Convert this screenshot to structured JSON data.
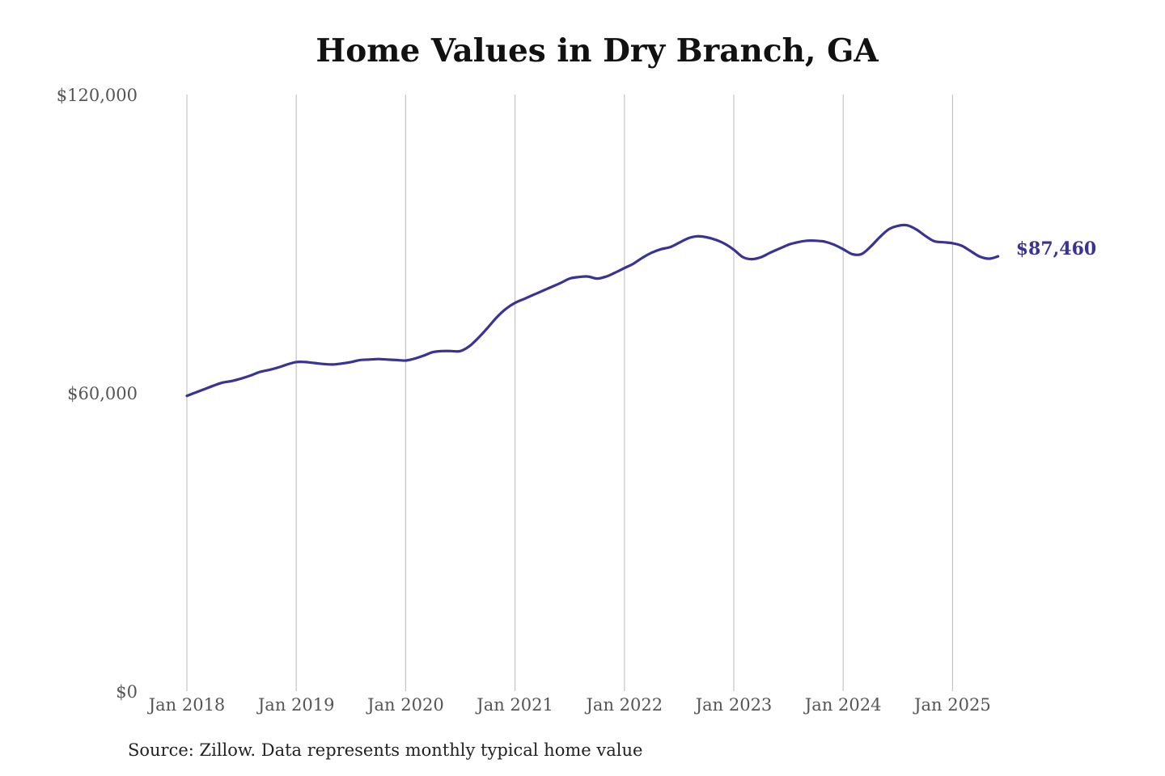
{
  "chart_data": {
    "type": "line",
    "title": "Home Values in Dry Branch, GA",
    "source": "Source: Zillow. Data represents monthly typical home value",
    "ylim": [
      0,
      120000
    ],
    "y_ticks": [
      {
        "value": 0,
        "label": "$0"
      },
      {
        "value": 60000,
        "label": "$60,000"
      },
      {
        "value": 120000,
        "label": "$120,000"
      }
    ],
    "x_ticks": [
      {
        "value": "2018-01",
        "label": "Jan 2018"
      },
      {
        "value": "2019-01",
        "label": "Jan 2019"
      },
      {
        "value": "2020-01",
        "label": "Jan 2020"
      },
      {
        "value": "2021-01",
        "label": "Jan 2021"
      },
      {
        "value": "2022-01",
        "label": "Jan 2022"
      },
      {
        "value": "2023-01",
        "label": "Jan 2023"
      },
      {
        "value": "2024-01",
        "label": "Jan 2024"
      },
      {
        "value": "2025-01",
        "label": "Jan 2025"
      }
    ],
    "xlim": [
      "2018-01",
      "2025-07"
    ],
    "grid": "vertical",
    "line_color": "#3a3396",
    "end_label": "$87,460",
    "series": [
      {
        "name": "",
        "x": [
          "2018-01",
          "2018-02",
          "2018-03",
          "2018-04",
          "2018-05",
          "2018-06",
          "2018-07",
          "2018-08",
          "2018-09",
          "2018-10",
          "2018-11",
          "2018-12",
          "2019-01",
          "2019-02",
          "2019-03",
          "2019-04",
          "2019-05",
          "2019-06",
          "2019-07",
          "2019-08",
          "2019-09",
          "2019-10",
          "2019-11",
          "2019-12",
          "2020-01",
          "2020-02",
          "2020-03",
          "2020-04",
          "2020-05",
          "2020-06",
          "2020-07",
          "2020-08",
          "2020-09",
          "2020-10",
          "2020-11",
          "2020-12",
          "2021-01",
          "2021-02",
          "2021-03",
          "2021-04",
          "2021-05",
          "2021-06",
          "2021-07",
          "2021-08",
          "2021-09",
          "2021-10",
          "2021-11",
          "2021-12",
          "2022-01",
          "2022-02",
          "2022-03",
          "2022-04",
          "2022-05",
          "2022-06",
          "2022-07",
          "2022-08",
          "2022-09",
          "2022-10",
          "2022-11",
          "2022-12",
          "2023-01",
          "2023-02",
          "2023-03",
          "2023-04",
          "2023-05",
          "2023-06",
          "2023-07",
          "2023-08",
          "2023-09",
          "2023-10",
          "2023-11",
          "2023-12",
          "2024-01",
          "2024-02",
          "2024-03",
          "2024-04",
          "2024-05",
          "2024-06",
          "2024-07",
          "2024-08",
          "2024-09",
          "2024-10",
          "2024-11",
          "2024-12",
          "2025-01",
          "2025-02",
          "2025-03",
          "2025-04",
          "2025-05",
          "2025-06"
        ],
        "values": [
          59400,
          60100,
          60800,
          61500,
          62100,
          62400,
          62900,
          63500,
          64200,
          64600,
          65100,
          65700,
          66200,
          66200,
          66000,
          65800,
          65700,
          65900,
          66200,
          66600,
          66700,
          66800,
          66700,
          66600,
          66500,
          66900,
          67500,
          68200,
          68400,
          68400,
          68400,
          69400,
          71100,
          73100,
          75200,
          76900,
          78100,
          78900,
          79700,
          80500,
          81300,
          82100,
          83000,
          83300,
          83400,
          83000,
          83400,
          84200,
          85100,
          86000,
          87200,
          88200,
          88900,
          89300,
          90200,
          91100,
          91500,
          91300,
          90800,
          90000,
          88800,
          87300,
          86900,
          87300,
          88200,
          89000,
          89800,
          90300,
          90600,
          90600,
          90400,
          89800,
          88900,
          87900,
          87900,
          89400,
          91300,
          92900,
          93600,
          93700,
          92900,
          91600,
          90500,
          90300,
          90100,
          89600,
          88500,
          87400,
          87000,
          87460
        ]
      }
    ]
  }
}
